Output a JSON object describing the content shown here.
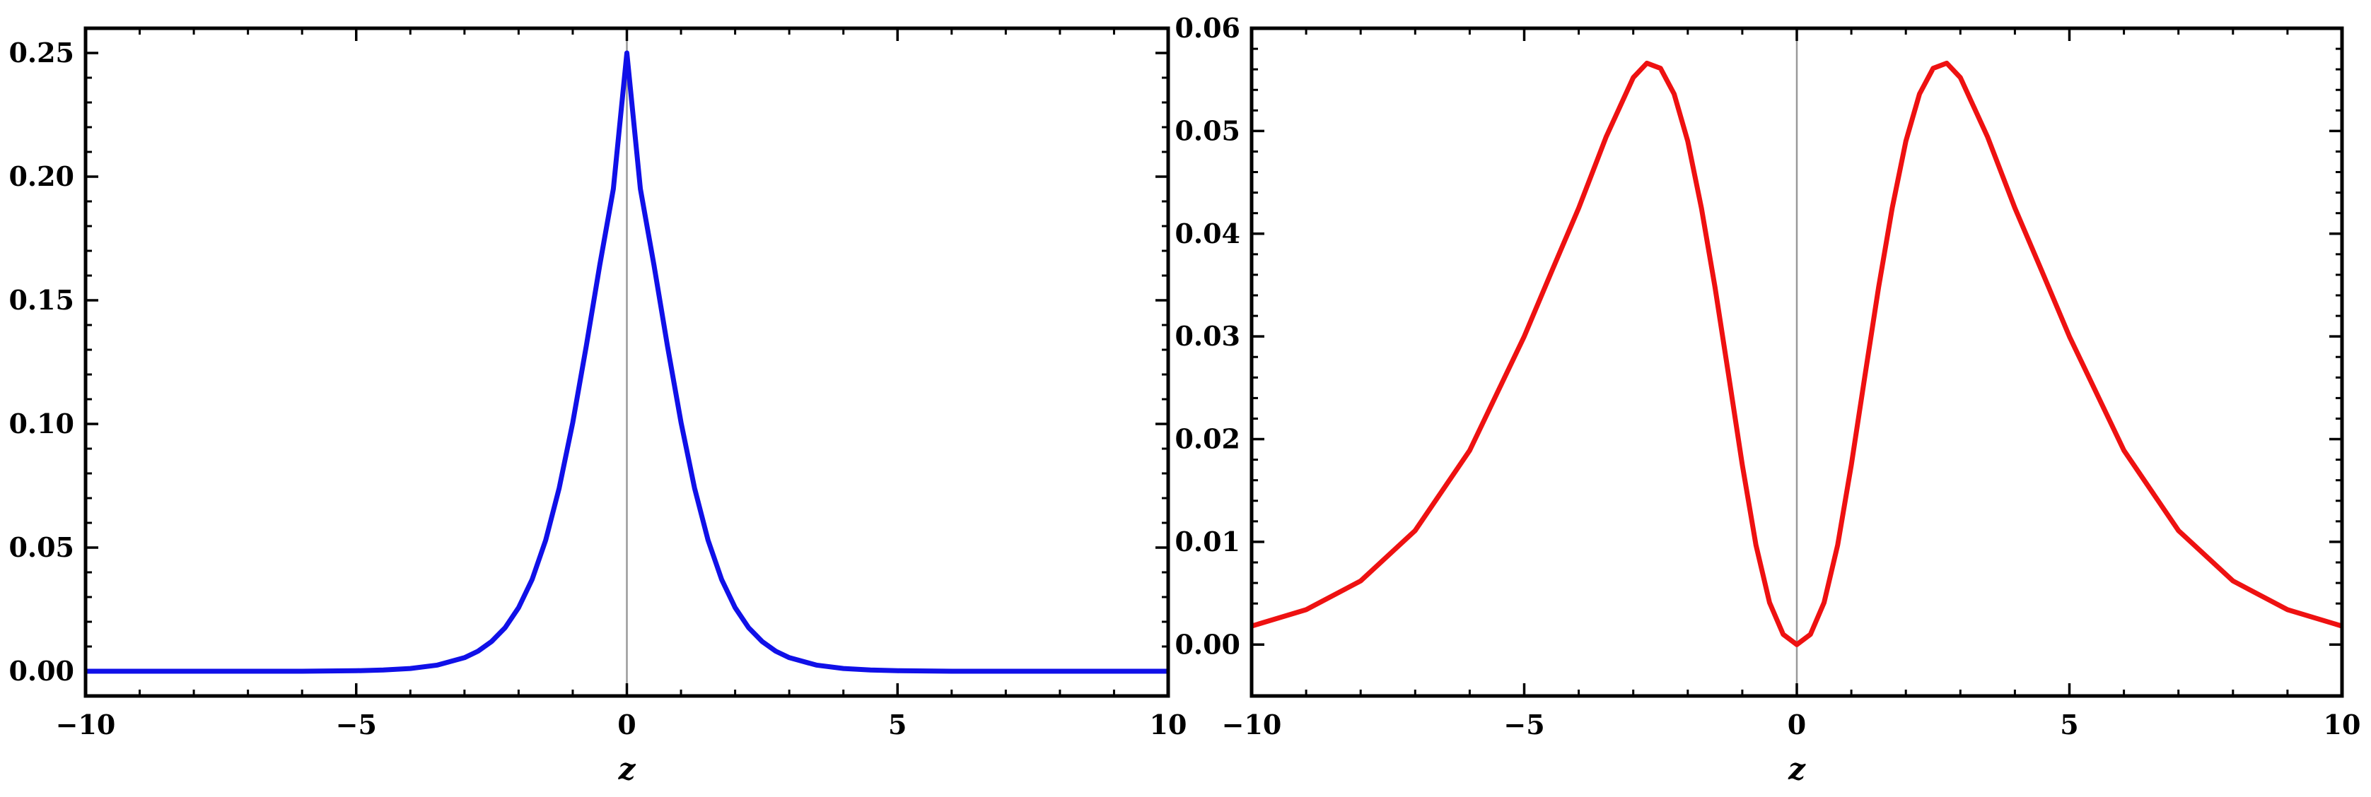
{
  "chart_data": [
    {
      "type": "line",
      "title": "",
      "xlabel": "z",
      "ylabel": "",
      "xlim": [
        -10,
        10
      ],
      "ylim": [
        -0.01,
        0.26
      ],
      "x_ticks": [
        -10,
        -5,
        0,
        5,
        10
      ],
      "x_tick_labels": [
        "−10",
        "−5",
        "0",
        "5",
        "10"
      ],
      "y_ticks": [
        0.0,
        0.05,
        0.1,
        0.15,
        0.2,
        0.25
      ],
      "y_tick_labels": [
        "0.00",
        "0.05",
        "0.10",
        "0.15",
        "0.20",
        "0.25"
      ],
      "grid": false,
      "reference_line_x": 0,
      "series": [
        {
          "color": "#1010e8",
          "x": [
            -10,
            -9,
            -8,
            -7,
            -6,
            -5,
            -4.5,
            -4,
            -3.5,
            -3,
            -2.75,
            -2.5,
            -2.25,
            -2,
            -1.75,
            -1.5,
            -1.25,
            -1,
            -0.75,
            -0.5,
            -0.25,
            0,
            0.25,
            0.5,
            0.75,
            1,
            1.25,
            1.5,
            1.75,
            2,
            2.25,
            2.5,
            2.75,
            3,
            3.5,
            4,
            4.5,
            5,
            6,
            7,
            8,
            9,
            10
          ],
          "y": [
            0.0,
            0.0,
            0.0,
            0.0,
            0.0,
            0.0002,
            0.0005,
            0.0011,
            0.0025,
            0.0055,
            0.0081,
            0.012,
            0.0176,
            0.0257,
            0.0371,
            0.053,
            0.0741,
            0.1006,
            0.1315,
            0.1643,
            0.1951,
            0.25,
            0.1951,
            0.1643,
            0.1315,
            0.1006,
            0.0741,
            0.053,
            0.0371,
            0.0257,
            0.0176,
            0.012,
            0.0081,
            0.0055,
            0.0025,
            0.0011,
            0.0005,
            0.0002,
            0.0,
            0.0,
            0.0,
            0.0,
            0.0
          ]
        }
      ]
    },
    {
      "type": "line",
      "title": "",
      "xlabel": "z",
      "ylabel": "",
      "xlim": [
        -10,
        10
      ],
      "ylim": [
        -0.005,
        0.06
      ],
      "x_ticks": [
        -10,
        -5,
        0,
        5,
        10
      ],
      "x_tick_labels": [
        "−10",
        "−5",
        "0",
        "5",
        "10"
      ],
      "y_ticks": [
        0.0,
        0.01,
        0.02,
        0.03,
        0.04,
        0.05,
        0.06
      ],
      "y_tick_labels": [
        "0.00",
        "0.01",
        "0.02",
        "0.03",
        "0.04",
        "0.05",
        "0.06"
      ],
      "grid": false,
      "reference_line_x": 0,
      "series": [
        {
          "color": "#ee1111",
          "x": [
            -10,
            -9,
            -8,
            -7,
            -6,
            -5,
            -4.5,
            -4,
            -3.5,
            -3,
            -2.75,
            -2.5,
            -2.25,
            -2,
            -1.75,
            -1.5,
            -1.25,
            -1,
            -0.75,
            -0.5,
            -0.25,
            0,
            0.25,
            0.5,
            0.75,
            1,
            1.25,
            1.5,
            1.75,
            2,
            2.25,
            2.5,
            2.75,
            3,
            3.5,
            4,
            4.5,
            5,
            6,
            7,
            8,
            9,
            10
          ],
          "y": [
            0.0018,
            0.0034,
            0.0062,
            0.0111,
            0.0189,
            0.03,
            0.0363,
            0.0425,
            0.0494,
            0.0552,
            0.0566,
            0.0561,
            0.0536,
            0.049,
            0.0425,
            0.0348,
            0.0262,
            0.0175,
            0.0097,
            0.0041,
            0.001,
            0.0,
            0.001,
            0.0041,
            0.0097,
            0.0175,
            0.0262,
            0.0348,
            0.0425,
            0.049,
            0.0536,
            0.0561,
            0.0566,
            0.0552,
            0.0494,
            0.0425,
            0.0363,
            0.03,
            0.0189,
            0.0111,
            0.0062,
            0.0034,
            0.0018
          ]
        }
      ]
    }
  ]
}
